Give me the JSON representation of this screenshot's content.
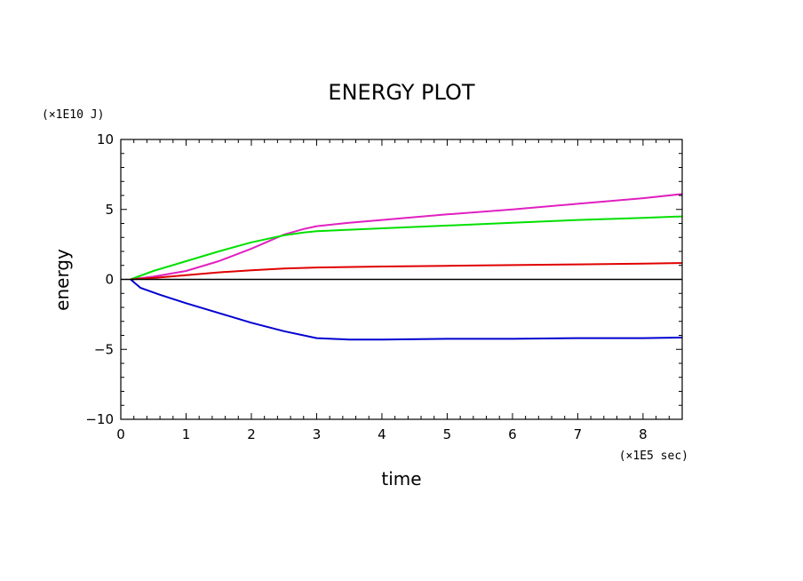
{
  "chart_data": {
    "type": "line",
    "title": "ENERGY PLOT",
    "xlabel": "time",
    "ylabel": "energy",
    "x_unit": "(×1E5 sec)",
    "y_unit": "(×1E10 J)",
    "xlim": [
      0,
      8.6
    ],
    "ylim": [
      -10,
      10
    ],
    "x_ticks": [
      "0",
      "1",
      "2",
      "3",
      "4",
      "5",
      "6",
      "7",
      "8"
    ],
    "y_ticks": [
      "−10",
      "−5",
      "0",
      "5",
      "10"
    ],
    "grid": false,
    "legend": "none",
    "series": [
      {
        "color": "#e020c0",
        "x": [
          0.15,
          0.5,
          1.0,
          1.5,
          2.0,
          2.5,
          2.8,
          3.0,
          3.5,
          4.0,
          5.0,
          6.0,
          7.0,
          8.0,
          8.6
        ],
        "y": [
          0.0,
          0.2,
          0.6,
          1.3,
          2.2,
          3.2,
          3.6,
          3.8,
          4.05,
          4.25,
          4.65,
          5.0,
          5.4,
          5.8,
          6.1
        ]
      },
      {
        "color": "#00e000",
        "x": [
          0.15,
          0.5,
          1.0,
          1.5,
          2.0,
          2.5,
          2.8,
          3.0,
          3.5,
          4.0,
          5.0,
          6.0,
          7.0,
          8.0,
          8.6
        ],
        "y": [
          0.0,
          0.6,
          1.3,
          2.0,
          2.65,
          3.15,
          3.35,
          3.45,
          3.55,
          3.65,
          3.85,
          4.05,
          4.25,
          4.4,
          4.5
        ]
      },
      {
        "color": "#e00000",
        "x": [
          0.15,
          0.5,
          1.0,
          1.5,
          2.0,
          2.5,
          3.0,
          4.0,
          5.0,
          6.0,
          7.0,
          8.0,
          8.6
        ],
        "y": [
          0.0,
          0.1,
          0.3,
          0.5,
          0.65,
          0.78,
          0.85,
          0.92,
          0.97,
          1.02,
          1.07,
          1.13,
          1.17
        ]
      },
      {
        "color": "#0000d0",
        "x": [
          0.15,
          0.3,
          0.6,
          1.0,
          1.5,
          2.0,
          2.5,
          3.0,
          3.5,
          4.0,
          5.0,
          6.0,
          7.0,
          8.0,
          8.6
        ],
        "y": [
          0.0,
          -0.6,
          -1.1,
          -1.7,
          -2.4,
          -3.1,
          -3.7,
          -4.2,
          -4.3,
          -4.3,
          -4.25,
          -4.25,
          -4.2,
          -4.2,
          -4.15
        ]
      },
      {
        "color": "#000000",
        "x": [
          0,
          8.6
        ],
        "y": [
          0,
          0
        ]
      }
    ]
  }
}
